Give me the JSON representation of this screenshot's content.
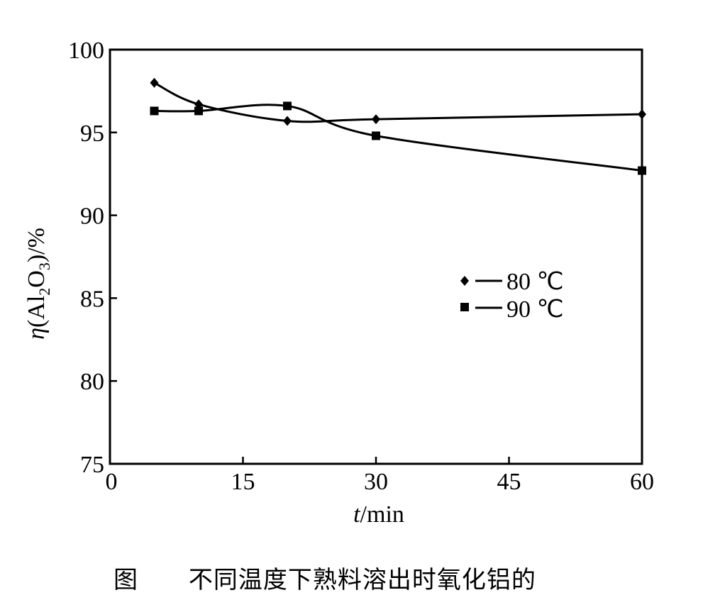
{
  "chart_data": {
    "type": "line",
    "x": [
      5,
      10,
      20,
      30,
      60
    ],
    "series": [
      {
        "name": "80 ℃",
        "marker": "diamond",
        "values": [
          98.0,
          96.7,
          95.7,
          95.8,
          96.1
        ]
      },
      {
        "name": "90 ℃",
        "marker": "square",
        "values": [
          96.3,
          96.3,
          96.6,
          94.8,
          92.7
        ]
      }
    ],
    "xlim": [
      0,
      60
    ],
    "ylim": [
      75,
      100
    ],
    "xticks": [
      0,
      15,
      30,
      45,
      60
    ],
    "yticks": [
      75,
      80,
      85,
      90,
      95,
      100
    ],
    "xlabel_var": "t",
    "xlabel_unit": "/min",
    "ylabel": {
      "eta": "η",
      "open": "(Al",
      "sub1": "2",
      "mid": "O",
      "sub2": "3",
      "close": ")/%"
    },
    "legend_position": "right-center",
    "grid": false,
    "line_color": "#000000"
  },
  "caption": {
    "prefix": "图",
    "text": "不同温度下熟料溶出时氧化铝的"
  }
}
